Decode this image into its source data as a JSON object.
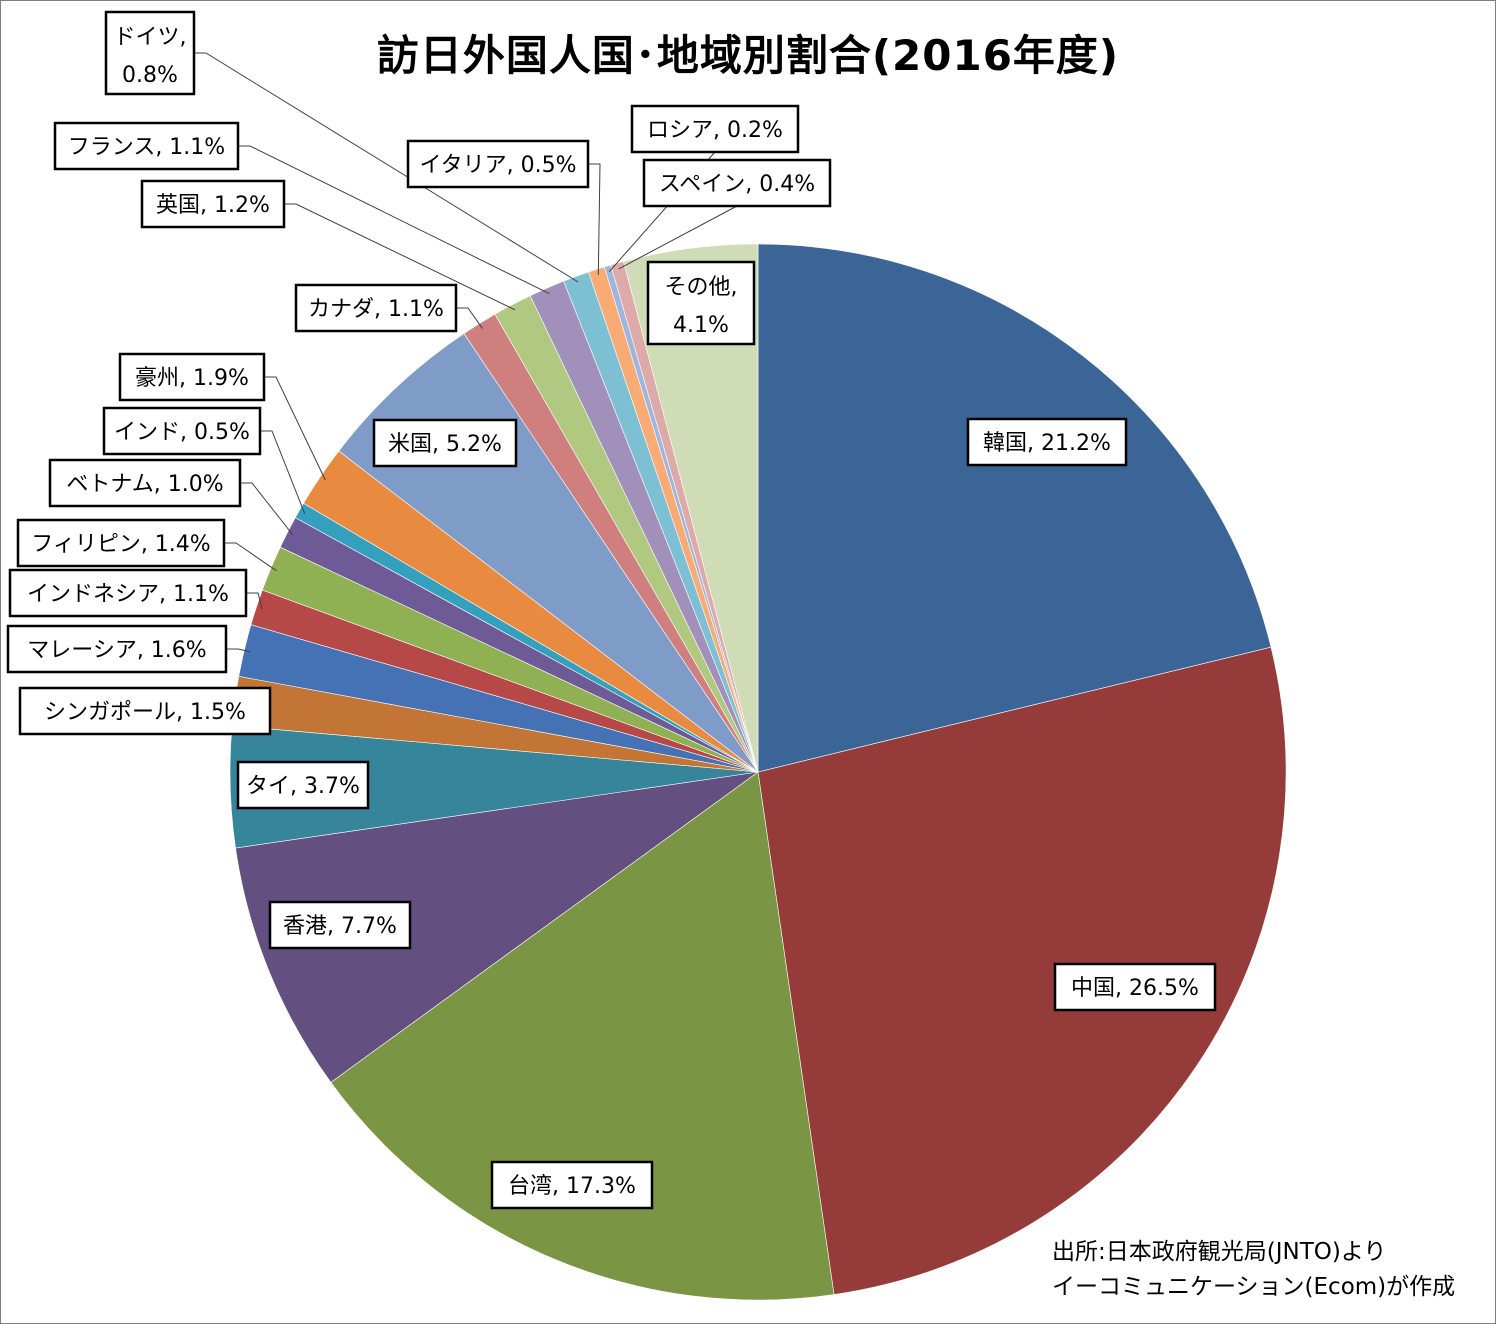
{
  "chart_data": {
    "type": "pie",
    "title": "訪日外国人国･地域別割合(2016年度)",
    "start_angle_deg": 0,
    "direction": "clockwise",
    "slices": [
      {
        "label": "韓国",
        "value": 21.2,
        "value_text": "21.2%",
        "color": "#3b6497"
      },
      {
        "label": "中国",
        "value": 26.5,
        "value_text": "26.5%",
        "color": "#953c3b"
      },
      {
        "label": "台湾",
        "value": 17.3,
        "value_text": "17.3%",
        "color": "#7a9544"
      },
      {
        "label": "香港",
        "value": 7.7,
        "value_text": "7.7%",
        "color": "#634f80"
      },
      {
        "label": "タイ",
        "value": 3.7,
        "value_text": "3.7%",
        "color": "#37859b"
      },
      {
        "label": "シンガポール",
        "value": 1.5,
        "value_text": "1.5%",
        "color": "#c37535"
      },
      {
        "label": "マレーシア",
        "value": 1.6,
        "value_text": "1.6%",
        "color": "#4572b4"
      },
      {
        "label": "インドネシア",
        "value": 1.1,
        "value_text": "1.1%",
        "color": "#b64947"
      },
      {
        "label": "フィリピン",
        "value": 1.4,
        "value_text": "1.4%",
        "color": "#8fb053"
      },
      {
        "label": "ベトナム",
        "value": 1.0,
        "value_text": "1.0%",
        "color": "#6e5a97"
      },
      {
        "label": "インド",
        "value": 0.5,
        "value_text": "0.5%",
        "color": "#35a0bd"
      },
      {
        "label": "豪州",
        "value": 1.9,
        "value_text": "1.9%",
        "color": "#e88b40"
      },
      {
        "label": "米国",
        "value": 5.2,
        "value_text": "5.2%",
        "color": "#7f9cc9"
      },
      {
        "label": "カナダ",
        "value": 1.1,
        "value_text": "1.1%",
        "color": "#cf7f7d"
      },
      {
        "label": "英国",
        "value": 1.2,
        "value_text": "1.2%",
        "color": "#b0c880"
      },
      {
        "label": "フランス",
        "value": 1.1,
        "value_text": "1.1%",
        "color": "#a090ba"
      },
      {
        "label": "ドイツ",
        "value": 0.8,
        "value_text": "0.8%",
        "color": "#7dbfd3"
      },
      {
        "label": "イタリア",
        "value": 0.5,
        "value_text": "0.5%",
        "color": "#f9ab76"
      },
      {
        "label": "ロシア",
        "value": 0.2,
        "value_text": "0.2%",
        "color": "#9eb6dc"
      },
      {
        "label": "スペイン",
        "value": 0.4,
        "value_text": "0.4%",
        "color": "#deaaa9"
      },
      {
        "label": "その他",
        "value": 4.1,
        "value_text": "4.1%",
        "color": "#cfdcb5"
      }
    ]
  },
  "source": {
    "line1": "出所:日本政府観光局(JNTO)より",
    "line2": "イーコミュニケーション(Ecom)が作成"
  }
}
